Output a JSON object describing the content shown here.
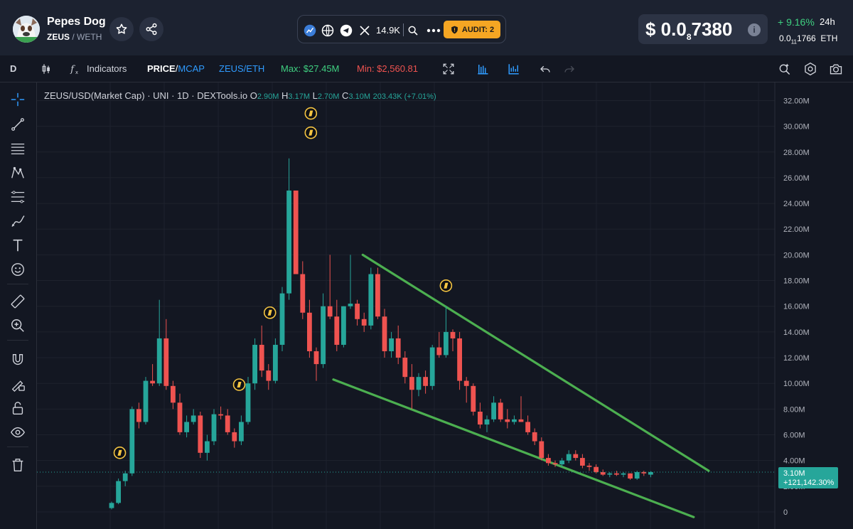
{
  "header": {
    "token_name": "Pepes Dog",
    "token_symbol": "ZEUS",
    "pair_quote": "/ WETH",
    "followers": "14.9K",
    "audit_label": "AUDIT: 2",
    "price_prefix": "$ 0.0",
    "price_zeros": "8",
    "price_digits": "7380",
    "change": "+ 9.16%",
    "change_timeframe": "24h",
    "eth_price_prefix": "0.0",
    "eth_price_zeros": "11",
    "eth_price_digits": "1766",
    "eth_unit": "ETH",
    "colors": {
      "up": "#3fcf80",
      "audit": "#f5a623"
    }
  },
  "toolbar": {
    "timeframe": "D",
    "indicators_label": "Indicators",
    "price_label": "PRICE",
    "mcap_label": "MCAP",
    "pair_label": "ZEUS/ETH",
    "max_label": "Max: $27.45M",
    "min_label": "Min: $2,560.81"
  },
  "legend": {
    "title": "ZEUS/USD(Market Cap) · UNI · 1D · DEXTools.io",
    "o_key": "O",
    "o_val": "2.90M",
    "h_key": "H",
    "h_val": "3.17M",
    "l_key": "L",
    "l_val": "2.70M",
    "c_key": "C",
    "c_val": "3.10M",
    "change": "203.43K (+7.01%)"
  },
  "chart_data": {
    "type": "candlestick",
    "y_ticks": [
      "0",
      "2.00M",
      "4.00M",
      "6.00M",
      "8.00M",
      "10.00M",
      "12.00M",
      "14.00M",
      "16.00M",
      "18.00M",
      "20.00M",
      "22.00M",
      "24.00M",
      "26.00M",
      "28.00M",
      "30.00M",
      "32.00M"
    ],
    "ylim": [
      0,
      33
    ],
    "y_unit": "M",
    "last_value_label": "3.10M",
    "last_change_label": "+121,142.30%",
    "last_value": 3.1,
    "colors": {
      "up": "#26a69a",
      "down": "#ef5350",
      "trendline": "#4caf50"
    },
    "candles": [
      [
        0.3,
        0.8,
        0.2,
        0.7
      ],
      [
        0.7,
        2.6,
        0.6,
        2.4
      ],
      [
        2.4,
        3.2,
        2.0,
        3.0
      ],
      [
        3.0,
        8.2,
        2.8,
        8.0
      ],
      [
        8.0,
        8.5,
        6.5,
        7.0
      ],
      [
        7.0,
        10.5,
        6.8,
        10.2
      ],
      [
        10.2,
        11.5,
        9.8,
        10.0
      ],
      [
        10.0,
        16.5,
        9.8,
        13.5
      ],
      [
        13.5,
        15.0,
        9.5,
        9.8
      ],
      [
        9.8,
        10.2,
        8.0,
        8.5
      ],
      [
        8.5,
        9.2,
        6.0,
        6.2
      ],
      [
        6.2,
        7.5,
        5.8,
        7.0
      ],
      [
        7.0,
        8.0,
        6.8,
        7.5
      ],
      [
        7.5,
        7.8,
        4.2,
        4.6
      ],
      [
        4.6,
        6.0,
        4.0,
        5.5
      ],
      [
        5.5,
        8.0,
        5.2,
        7.6
      ],
      [
        7.6,
        8.2,
        7.2,
        7.5
      ],
      [
        7.5,
        8.0,
        6.0,
        6.2
      ],
      [
        6.2,
        6.5,
        5.0,
        5.5
      ],
      [
        5.5,
        7.5,
        5.2,
        7.0
      ],
      [
        7.0,
        10.5,
        6.8,
        10.0
      ],
      [
        10.0,
        13.5,
        9.5,
        13.0
      ],
      [
        13.0,
        14.5,
        10.5,
        11.0
      ],
      [
        11.0,
        11.5,
        9.5,
        10.2
      ],
      [
        10.2,
        13.5,
        10.0,
        13.0
      ],
      [
        13.0,
        17.5,
        12.5,
        17.0
      ],
      [
        17.0,
        27.5,
        16.5,
        25.0
      ],
      [
        25.0,
        25.0,
        18.5,
        18.5
      ],
      [
        18.5,
        19.5,
        15.0,
        15.5
      ],
      [
        15.5,
        16.5,
        12.0,
        12.5
      ],
      [
        12.5,
        12.8,
        10.2,
        11.5
      ],
      [
        11.5,
        17.0,
        11.2,
        16.0
      ],
      [
        16.0,
        20.0,
        15.0,
        15.2
      ],
      [
        15.2,
        16.5,
        12.5,
        13.0
      ],
      [
        13.0,
        16.0,
        12.8,
        16.0
      ],
      [
        16.0,
        20.0,
        15.8,
        16.2
      ],
      [
        16.2,
        16.5,
        14.5,
        15.0
      ],
      [
        15.0,
        15.5,
        14.0,
        14.5
      ],
      [
        14.5,
        19.0,
        14.2,
        18.5
      ],
      [
        18.5,
        19.0,
        15.0,
        15.2
      ],
      [
        15.2,
        15.8,
        12.0,
        12.5
      ],
      [
        12.5,
        14.0,
        12.0,
        13.5
      ],
      [
        13.5,
        14.5,
        11.5,
        12.0
      ],
      [
        12.0,
        12.5,
        10.0,
        10.5
      ],
      [
        10.5,
        11.5,
        8.0,
        9.5
      ],
      [
        9.5,
        10.8,
        9.0,
        10.5
      ],
      [
        10.5,
        11.0,
        9.2,
        9.8
      ],
      [
        9.8,
        13.0,
        9.5,
        12.8
      ],
      [
        12.8,
        14.0,
        12.0,
        12.2
      ],
      [
        12.2,
        16.0,
        12.0,
        14.0
      ],
      [
        14.0,
        14.2,
        12.5,
        13.5
      ],
      [
        13.5,
        14.0,
        9.5,
        10.2
      ],
      [
        10.2,
        10.5,
        8.5,
        9.8
      ],
      [
        9.8,
        10.0,
        7.5,
        7.8
      ],
      [
        7.8,
        8.5,
        6.5,
        6.8
      ],
      [
        6.8,
        7.5,
        6.2,
        7.2
      ],
      [
        7.2,
        9.0,
        7.0,
        8.5
      ],
      [
        8.5,
        8.8,
        7.0,
        7.2
      ],
      [
        7.2,
        8.0,
        6.5,
        7.0
      ],
      [
        7.0,
        7.5,
        6.8,
        7.2
      ],
      [
        7.2,
        9.0,
        7.0,
        7.0
      ],
      [
        7.0,
        7.5,
        6.0,
        6.2
      ],
      [
        6.2,
        6.5,
        5.2,
        5.5
      ],
      [
        5.5,
        5.8,
        4.0,
        4.2
      ],
      [
        4.2,
        4.5,
        3.6,
        3.8
      ],
      [
        3.8,
        4.0,
        3.5,
        3.7
      ],
      [
        3.7,
        4.2,
        3.5,
        4.0
      ],
      [
        4.0,
        4.8,
        3.8,
        4.5
      ],
      [
        4.5,
        4.8,
        4.0,
        4.2
      ],
      [
        4.2,
        4.5,
        3.4,
        3.6
      ],
      [
        3.6,
        3.8,
        3.2,
        3.5
      ],
      [
        3.5,
        3.7,
        3.0,
        3.1
      ],
      [
        3.1,
        3.3,
        2.8,
        2.9
      ],
      [
        2.9,
        3.1,
        2.7,
        3.0
      ],
      [
        3.0,
        3.2,
        2.8,
        2.9
      ],
      [
        2.9,
        3.1,
        2.7,
        3.0
      ],
      [
        3.0,
        3.0,
        2.5,
        2.6
      ],
      [
        2.6,
        3.2,
        2.5,
        3.1
      ],
      [
        3.1,
        3.2,
        2.8,
        3.0
      ],
      [
        2.9,
        3.17,
        2.7,
        3.1
      ]
    ],
    "trendlines": [
      {
        "from": {
          "i": 36.8,
          "v": 20.0
        },
        "to": {
          "i": 87.5,
          "v": 3.2
        }
      },
      {
        "from": {
          "i": 32.5,
          "v": 10.3
        },
        "to": {
          "i": 85.3,
          "v": -0.4
        }
      }
    ],
    "markers": [
      {
        "i": 1.2,
        "v": 4.6
      },
      {
        "i": 18.7,
        "v": 9.9
      },
      {
        "i": 23.2,
        "v": 15.5
      },
      {
        "i": 29.2,
        "v": 29.5
      },
      {
        "i": 29.2,
        "v": 31.0
      },
      {
        "i": 49.0,
        "v": 17.6
      }
    ]
  }
}
